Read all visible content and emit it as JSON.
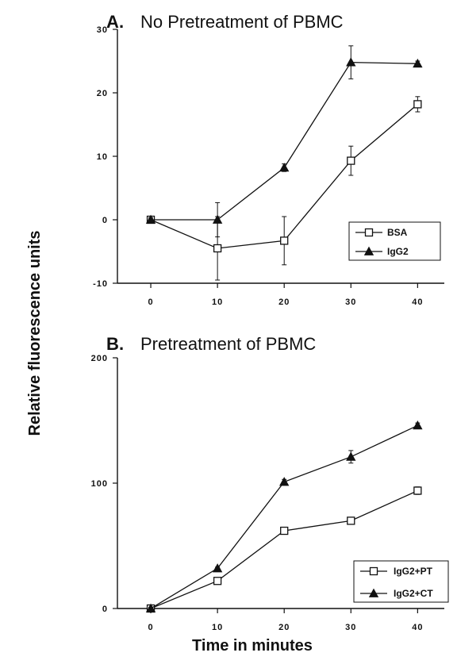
{
  "figure": {
    "ylabel": "Relative fluorescence units",
    "xlabel": "Time in minutes"
  },
  "chart_data": [
    {
      "type": "line",
      "panel_letter": "A",
      "title": "No Pretreatment of PBMC",
      "x": [
        0,
        10,
        20,
        30,
        40
      ],
      "xticks": [
        "0",
        "10",
        "20",
        "30",
        "40"
      ],
      "yticks": [
        "30",
        "20",
        "10",
        "0",
        "-10"
      ],
      "ylim": [
        -10,
        30
      ],
      "xlim": [
        -5,
        44
      ],
      "grid": false,
      "legend_position": "bottom-right",
      "series": [
        {
          "name": "BSA",
          "marker": "open-square",
          "values": [
            0,
            -4.5,
            -3.3,
            9.3,
            18.2
          ],
          "errors": [
            0.3,
            5.0,
            3.8,
            2.3,
            1.2
          ]
        },
        {
          "name": "IgG2",
          "marker": "filled-triangle",
          "values": [
            0,
            0,
            8.2,
            24.8,
            24.6
          ],
          "errors": [
            0.3,
            2.7,
            0.6,
            2.6,
            0.4
          ]
        }
      ]
    },
    {
      "type": "line",
      "panel_letter": "B",
      "title": "Pretreatment of PBMC",
      "x": [
        0,
        10,
        20,
        30,
        40
      ],
      "xticks": [
        "0",
        "10",
        "20",
        "30",
        "40"
      ],
      "yticks": [
        "200",
        "100",
        "0"
      ],
      "ylim": [
        0,
        200
      ],
      "xlim": [
        -5,
        44
      ],
      "grid": false,
      "legend_position": "bottom-right",
      "series": [
        {
          "name": "IgG2+PT",
          "marker": "open-square",
          "values": [
            0,
            22,
            62,
            70,
            94
          ],
          "errors": [
            1,
            1,
            1,
            1,
            3
          ]
        },
        {
          "name": "IgG2+CT",
          "marker": "filled-triangle",
          "values": [
            0,
            32,
            101,
            121,
            146
          ],
          "errors": [
            1,
            1,
            2,
            5,
            2
          ]
        }
      ]
    }
  ]
}
